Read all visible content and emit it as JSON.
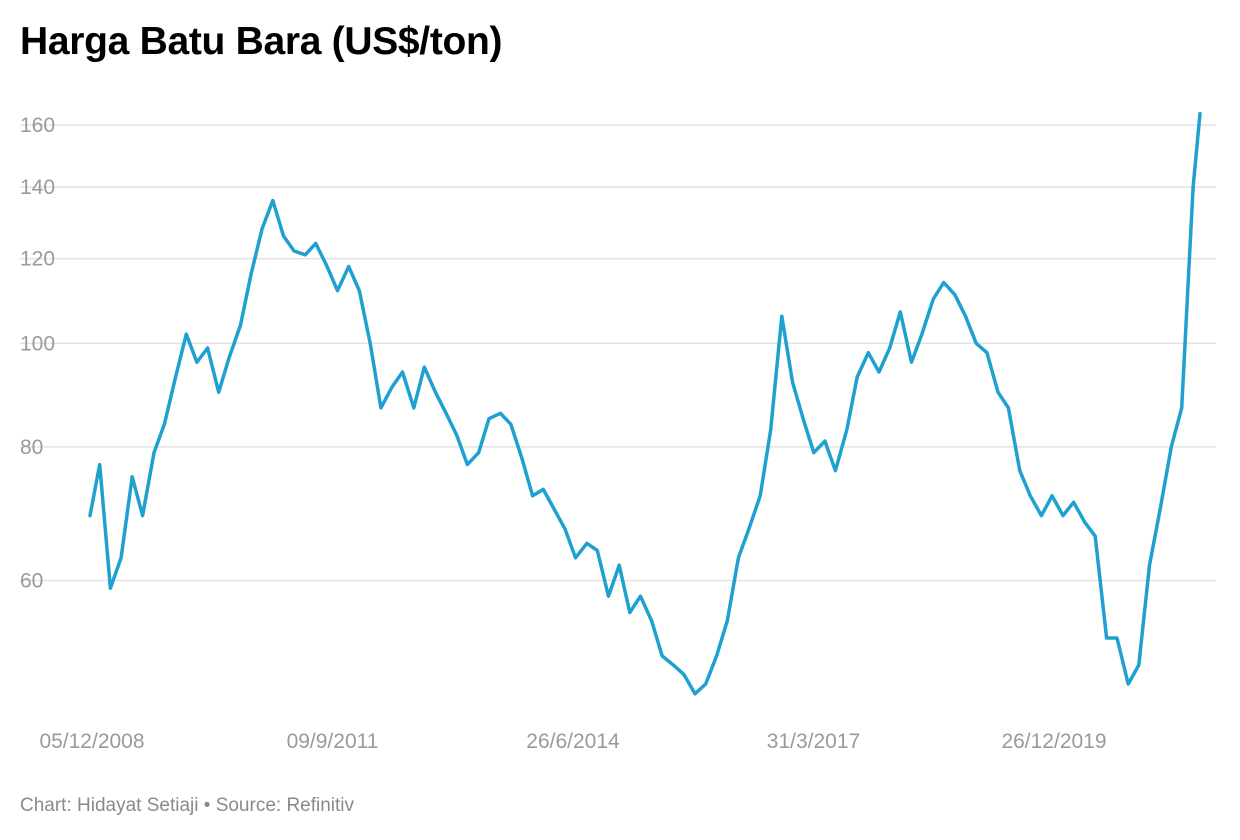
{
  "chart_data": {
    "type": "line",
    "title": "Harga Batu Bara (US$/ton)",
    "xlabel": "",
    "ylabel": "",
    "y_scale": "log",
    "ylim": [
      45,
      166
    ],
    "y_ticks": [
      60,
      80,
      100,
      120,
      140,
      160
    ],
    "x_tick_labels": [
      "05/12/2008",
      "09/9/2011",
      "26/6/2014",
      "31/3/2017",
      "26/12/2019"
    ],
    "grid": "horizontal",
    "line_color": "#1fa1d0",
    "series": [
      {
        "x": [
          "2008-12-05",
          "2009-01-15",
          "2009-03-01",
          "2009-04-15",
          "2009-06-01",
          "2009-07-15",
          "2009-09-01",
          "2009-10-15",
          "2009-12-01",
          "2010-01-15",
          "2010-03-01",
          "2010-04-15",
          "2010-06-01",
          "2010-07-15",
          "2010-09-01",
          "2010-10-15",
          "2010-12-01",
          "2011-01-15",
          "2011-03-01",
          "2011-04-15",
          "2011-06-01",
          "2011-07-15",
          "2011-09-01",
          "2011-10-15",
          "2011-12-01",
          "2012-01-15",
          "2012-03-01",
          "2012-04-15",
          "2012-06-01",
          "2012-07-15",
          "2012-09-01",
          "2012-10-15",
          "2012-12-01",
          "2013-01-15",
          "2013-03-01",
          "2013-04-15",
          "2013-06-01",
          "2013-07-15",
          "2013-09-01",
          "2013-10-15",
          "2013-12-01",
          "2014-01-15",
          "2014-03-01",
          "2014-04-15",
          "2014-06-01",
          "2014-07-15",
          "2014-09-01",
          "2014-10-15",
          "2014-12-01",
          "2015-01-15",
          "2015-03-01",
          "2015-04-15",
          "2015-06-01",
          "2015-07-15",
          "2015-09-01",
          "2015-10-15",
          "2015-12-01",
          "2016-01-15",
          "2016-03-01",
          "2016-04-15",
          "2016-06-01",
          "2016-07-15",
          "2016-09-01",
          "2016-10-15",
          "2016-12-01",
          "2017-01-15",
          "2017-03-01",
          "2017-04-15",
          "2017-06-01",
          "2017-07-15",
          "2017-09-01",
          "2017-10-15",
          "2017-12-01",
          "2018-01-15",
          "2018-03-01",
          "2018-04-15",
          "2018-06-01",
          "2018-07-15",
          "2018-09-01",
          "2018-10-15",
          "2018-12-01",
          "2019-01-15",
          "2019-03-01",
          "2019-04-15",
          "2019-06-01",
          "2019-07-15",
          "2019-09-01",
          "2019-10-15",
          "2019-12-01",
          "2020-01-15",
          "2020-03-01",
          "2020-04-15",
          "2020-06-01",
          "2020-07-15",
          "2020-09-01",
          "2020-10-15",
          "2020-12-01",
          "2021-01-15",
          "2021-03-01",
          "2021-04-15",
          "2021-06-01",
          "2021-07-15",
          "2021-09-01",
          "2021-09-30"
        ],
        "values": [
          69,
          77,
          59,
          63,
          75,
          69,
          79,
          84,
          93,
          102,
          96,
          99,
          90,
          97,
          104,
          116,
          128,
          136,
          126,
          122,
          121,
          124,
          118,
          112,
          118,
          112,
          100,
          87,
          91,
          94,
          87,
          95,
          90,
          86,
          82,
          77,
          79,
          85,
          86,
          84,
          78,
          72,
          73,
          70,
          67,
          63,
          65,
          64,
          58,
          62,
          56,
          58,
          55,
          51,
          50,
          49,
          47,
          48,
          51,
          55,
          63,
          67,
          72,
          83,
          106,
          92,
          85,
          79,
          81,
          76,
          83,
          93,
          98,
          94,
          99,
          107,
          96,
          102,
          110,
          114,
          111,
          106,
          100,
          98,
          90,
          87,
          76,
          72,
          69,
          72,
          69,
          71,
          68,
          66,
          53,
          53,
          48,
          50,
          62,
          70,
          80,
          87,
          140,
          164
        ]
      }
    ],
    "footer": {
      "chart_credit": "Chart: Hidayat Setiaji",
      "separator": " • ",
      "source": "Source: Refinitiv"
    }
  }
}
